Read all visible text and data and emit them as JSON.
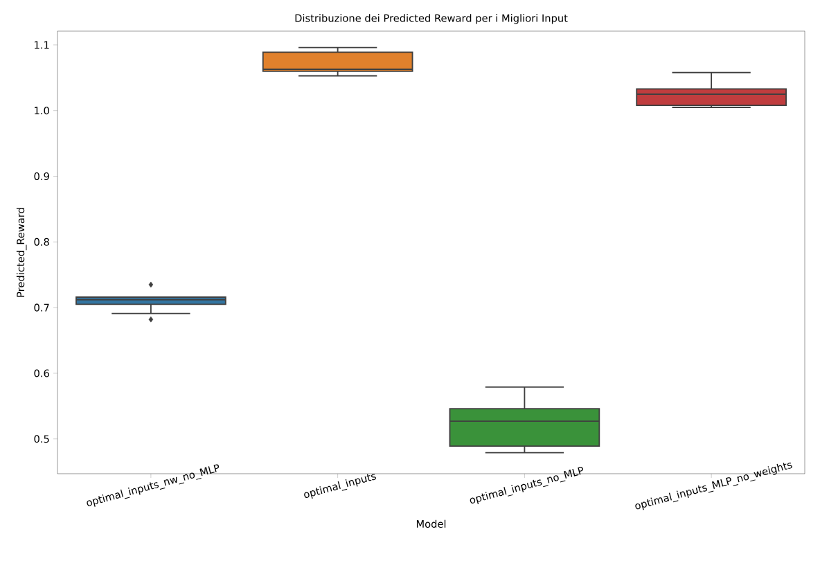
{
  "chart_data": {
    "type": "box",
    "title": "Distribuzione dei Predicted Reward per i Migliori Input",
    "xlabel": "Model",
    "ylabel": "Predicted_Reward",
    "categories": [
      "optimal_inputs_nw_no_MLP",
      "optimal_inputs",
      "optimal_inputs_no_MLP",
      "optimal_inputs_MLP_no_weights"
    ],
    "colors": [
      "#3274a1",
      "#e1812c",
      "#3a923a",
      "#c03d3e"
    ],
    "boxes": [
      {
        "low": 0.691,
        "q1": 0.705,
        "median": 0.712,
        "q3": 0.716,
        "high": 0.716,
        "outliers": [
          0.735,
          0.682
        ]
      },
      {
        "low": 1.053,
        "q1": 1.06,
        "median": 1.063,
        "q3": 1.089,
        "high": 1.096
      },
      {
        "low": 0.479,
        "q1": 0.489,
        "median": 0.527,
        "q3": 0.546,
        "high": 0.579
      },
      {
        "low": 1.005,
        "q1": 1.008,
        "median": 1.025,
        "q3": 1.033,
        "high": 1.058
      }
    ],
    "ylim": [
      0.447,
      1.121
    ],
    "yticks": [
      0.5,
      0.6,
      0.7,
      0.8,
      0.9,
      {
        "value": 1.0,
        "label": "1.0"
      },
      1.1
    ]
  }
}
